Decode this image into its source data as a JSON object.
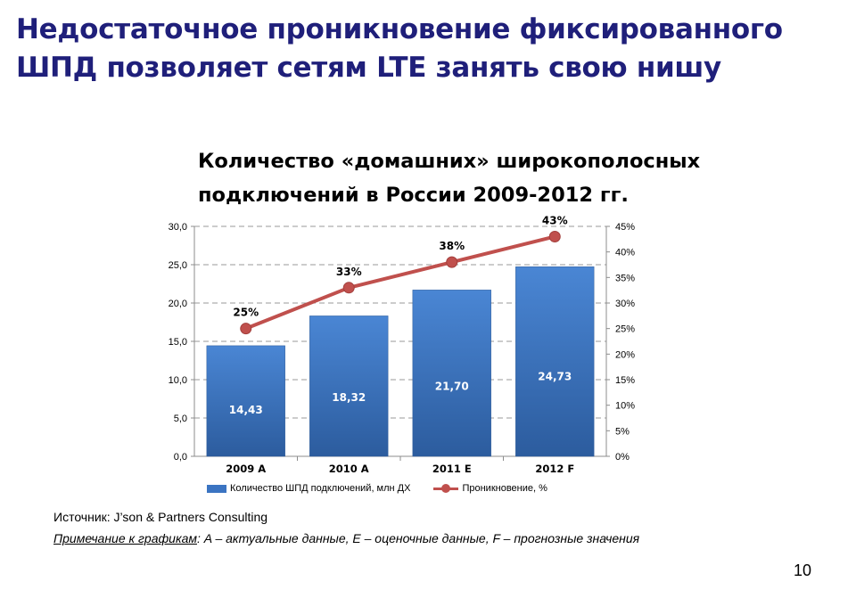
{
  "slide": {
    "title_line1": "Недостаточное проникновение фиксированного",
    "title_line2": "ШПД позволяет сетям LTE занять свою нишу",
    "source": "Источник: J’son & Partners Consulting",
    "note_label": "Примечание к графикам",
    "note_text": ": A – актуальные данные, E – оценочные данные, F – прогнозные значения",
    "page_number": "10"
  },
  "colors": {
    "title": "#1f1f7a",
    "bar": "#3b74c2",
    "line": "#c0504d"
  },
  "chart_data": {
    "type": "bar",
    "title_line1": "Количество «домашних» широкополосных",
    "title_line2": "подключений в России 2009-2012 гг.",
    "categories": [
      "2009 A",
      "2010 A",
      "2011 E",
      "2012 F"
    ],
    "series": [
      {
        "name": "Количество ШПД подключений,  млн ДХ",
        "type": "bar",
        "axis": "left",
        "values": [
          14.43,
          18.32,
          21.7,
          24.73
        ],
        "labels": [
          "14,43",
          "18,32",
          "21,70",
          "24,73"
        ]
      },
      {
        "name": "Проникновение, %",
        "type": "line",
        "axis": "right",
        "values": [
          25,
          33,
          38,
          43
        ],
        "labels": [
          "25%",
          "33%",
          "38%",
          "43%"
        ]
      }
    ],
    "y_left": {
      "min": 0,
      "max": 30,
      "step": 5,
      "tick_labels": [
        "0,0",
        "5,0",
        "10,0",
        "15,0",
        "20,0",
        "25,0",
        "30,0"
      ]
    },
    "y_right": {
      "min": 0,
      "max": 45,
      "step": 5,
      "tick_labels": [
        "0%",
        "5%",
        "10%",
        "15%",
        "20%",
        "25%",
        "30%",
        "35%",
        "40%",
        "45%"
      ]
    },
    "grid": "dashed-horizontal",
    "legend": "bottom"
  }
}
